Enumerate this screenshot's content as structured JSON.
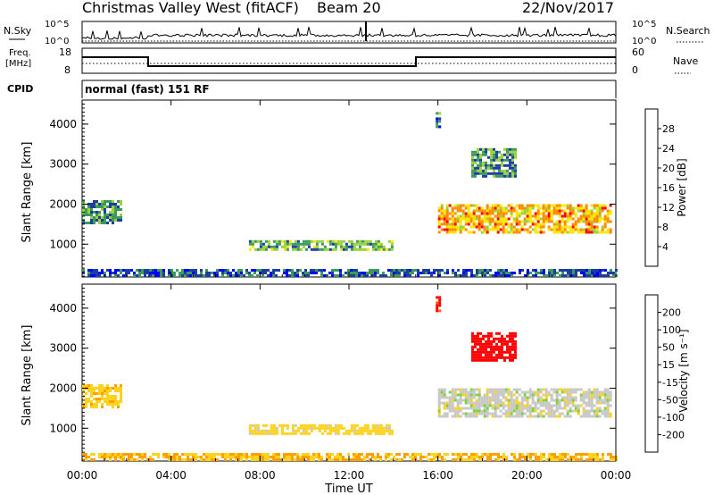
{
  "header": {
    "title": "Christmas Valley West (fitACF)",
    "beam": "Beam 20",
    "date": "22/Nov/2017"
  },
  "top_panels": {
    "nsky_label": "N.Sky",
    "nsky_ticks": [
      "10^5",
      "10^0"
    ],
    "nsearch_label": "N.Search",
    "freq_label_1": "Freq.",
    "freq_label_2": "[MHz]",
    "freq_ticks": [
      "18",
      "8"
    ],
    "nave_ticks": [
      "60",
      "0"
    ],
    "nave_label": "Nave",
    "cpid_label": "CPID",
    "cpid_text": "normal (fast) 151 RF"
  },
  "colorbars": {
    "power": {
      "label": "Power [dB]",
      "ticks": [
        "28",
        "24",
        "20",
        "16",
        "12",
        "8",
        "4"
      ],
      "colors": [
        "#ff0000",
        "#ff6a00",
        "#ffb000",
        "#ffe600",
        "#9bd23c",
        "#3c9a5a",
        "#1a3fa0",
        "#0000ff"
      ]
    },
    "velocity": {
      "label": "Velocity [m s⁻¹]",
      "ticks": [
        "200",
        "100",
        "50",
        "15",
        "-15",
        "-50",
        "-100",
        "-200"
      ],
      "colors": [
        "#1a3fa0",
        "#2a9a6a",
        "#3caa3c",
        "#7cd23c",
        "#c8c8c8",
        "#ffd21e",
        "#ffa000",
        "#ff6400",
        "#ff0000"
      ]
    }
  },
  "chart_data": [
    {
      "type": "heatmap",
      "title": "Power",
      "xlabel": "Time UT",
      "ylabel": "Slant Range [km]",
      "x_ticks": [
        "00:00",
        "04:00",
        "08:00",
        "12:00",
        "16:00",
        "20:00",
        "00:00"
      ],
      "y_ticks": [
        "1000",
        "2000",
        "3000",
        "4000"
      ],
      "xlim_hours": [
        0,
        24
      ],
      "ylim_km": [
        180,
        4600
      ],
      "colorbar": "Power [dB]",
      "features": [
        {
          "t_start": 0.0,
          "t_end": 1.8,
          "r_min": 1500,
          "r_max": 2100,
          "level_db": 14
        },
        {
          "t_start": 7.5,
          "t_end": 14.0,
          "r_min": 850,
          "r_max": 1100,
          "level_db": 16
        },
        {
          "t_start": 16.0,
          "t_end": 23.8,
          "r_min": 1300,
          "r_max": 2000,
          "level_db": 24
        },
        {
          "t_start": 0.0,
          "t_end": 24.0,
          "r_min": 200,
          "r_max": 380,
          "level_db": 10
        },
        {
          "t_start": 17.5,
          "t_end": 19.5,
          "r_min": 2700,
          "r_max": 3400,
          "level_db": 14
        },
        {
          "t_start": 15.9,
          "t_end": 16.1,
          "r_min": 3900,
          "r_max": 4300,
          "level_db": 12
        }
      ]
    },
    {
      "type": "heatmap",
      "title": "Velocity",
      "xlabel": "Time UT",
      "ylabel": "Slant Range [km]",
      "x_ticks": [
        "00:00",
        "04:00",
        "08:00",
        "12:00",
        "16:00",
        "20:00",
        "00:00"
      ],
      "y_ticks": [
        "1000",
        "2000",
        "3000",
        "4000"
      ],
      "xlim_hours": [
        0,
        24
      ],
      "ylim_km": [
        180,
        4600
      ],
      "colorbar": "Velocity [m s⁻¹]",
      "features": [
        {
          "t_start": 0.0,
          "t_end": 1.8,
          "r_min": 1500,
          "r_max": 2100,
          "velocity": -40
        },
        {
          "t_start": 7.5,
          "t_end": 14.0,
          "r_min": 850,
          "r_max": 1100,
          "velocity": -30
        },
        {
          "t_start": 16.0,
          "t_end": 23.8,
          "r_min": 1300,
          "r_max": 2000,
          "velocity": 0
        },
        {
          "t_start": 0.0,
          "t_end": 24.0,
          "r_min": 200,
          "r_max": 380,
          "velocity": -50
        },
        {
          "t_start": 17.5,
          "t_end": 19.5,
          "r_min": 2700,
          "r_max": 3400,
          "velocity": -200
        },
        {
          "t_start": 15.9,
          "t_end": 16.1,
          "r_min": 3900,
          "r_max": 4300,
          "velocity": -150
        }
      ]
    }
  ]
}
